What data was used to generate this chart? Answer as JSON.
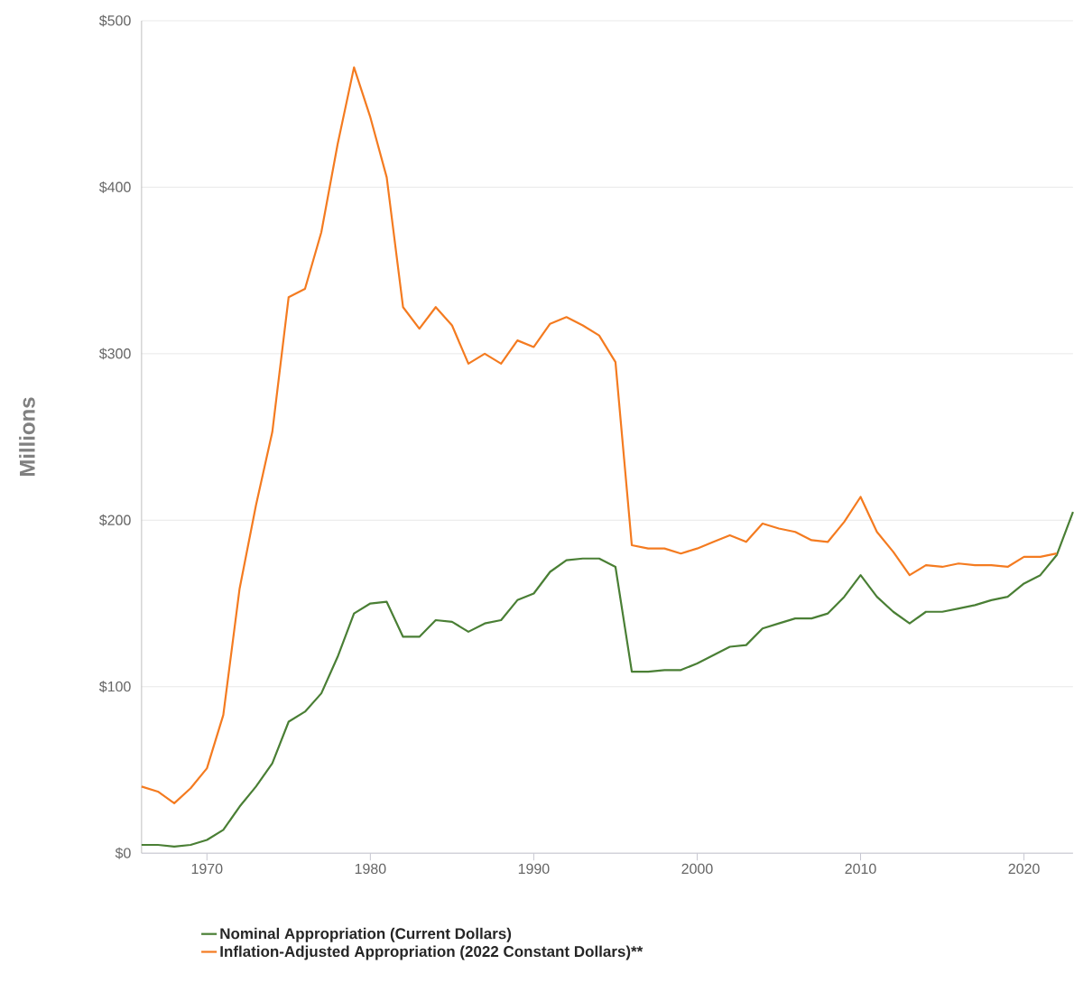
{
  "chart_data": {
    "type": "line",
    "ylabel": "Millions",
    "x": [
      1966,
      1967,
      1968,
      1969,
      1970,
      1971,
      1972,
      1973,
      1974,
      1975,
      1976,
      1977,
      1978,
      1979,
      1980,
      1981,
      1982,
      1983,
      1984,
      1985,
      1986,
      1987,
      1988,
      1989,
      1990,
      1991,
      1992,
      1993,
      1994,
      1995,
      1996,
      1997,
      1998,
      1999,
      2000,
      2001,
      2002,
      2003,
      2004,
      2005,
      2006,
      2007,
      2008,
      2009,
      2010,
      2011,
      2012,
      2013,
      2014,
      2015,
      2016,
      2017,
      2018,
      2019,
      2020,
      2021,
      2022,
      2023
    ],
    "series": [
      {
        "name": "Nominal Appropriation (Current Dollars)",
        "color": "#4a7f35",
        "values": [
          5,
          5,
          4,
          5,
          8,
          14,
          28,
          40,
          54,
          79,
          85,
          96,
          118,
          144,
          150,
          151,
          130,
          130,
          140,
          139,
          133,
          138,
          140,
          152,
          156,
          169,
          176,
          177,
          177,
          172,
          109,
          109,
          110,
          110,
          114,
          119,
          124,
          125,
          135,
          138,
          141,
          141,
          144,
          154,
          167,
          154,
          145,
          138,
          145,
          145,
          147,
          149,
          152,
          154,
          162,
          167,
          179,
          205
        ]
      },
      {
        "name": "Inflation-Adjusted Appropriation (2022 Constant Dollars)**",
        "color": "#f47b20",
        "values": [
          40,
          37,
          30,
          39,
          51,
          83,
          159,
          209,
          253,
          334,
          339,
          373,
          426,
          472,
          442,
          406,
          328,
          315,
          328,
          317,
          294,
          300,
          294,
          308,
          304,
          318,
          322,
          317,
          311,
          295,
          185,
          183,
          183,
          180,
          183,
          187,
          191,
          187,
          198,
          195,
          193,
          188,
          187,
          199,
          214,
          193,
          181,
          167,
          173,
          172,
          174,
          173,
          173,
          172,
          178,
          178,
          180,
          null
        ]
      }
    ],
    "xlim": [
      1966,
      2023
    ],
    "xticks": [
      1970,
      1980,
      1990,
      2000,
      2010,
      2020
    ],
    "ylim": [
      0,
      500
    ],
    "yticks": [
      {
        "value": 0,
        "label": "$0"
      },
      {
        "value": 100,
        "label": "$100"
      },
      {
        "value": 200,
        "label": "$200"
      },
      {
        "value": 300,
        "label": "$300"
      },
      {
        "value": 400,
        "label": "$400"
      },
      {
        "value": 500,
        "label": "$500"
      }
    ],
    "grid": "y",
    "legend": "bottom",
    "marker": "none",
    "line_style": "solid"
  }
}
